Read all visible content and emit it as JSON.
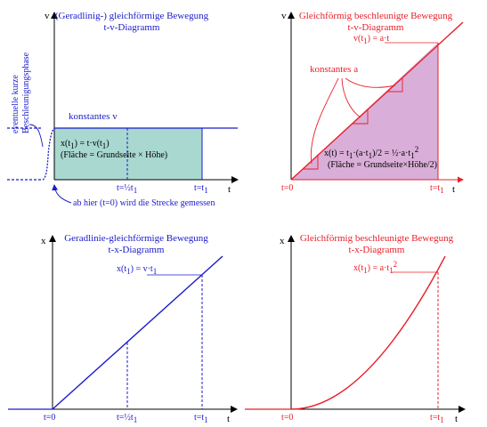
{
  "colors": {
    "blue": "#1a1acc",
    "red": "#e8202a",
    "teal_fill": "#a8d8cf",
    "purple_fill": "#d9aed8",
    "axis": "#000000"
  },
  "p1": {
    "title1": "(Geradlinig-) gleichförmige Bewegung",
    "title2": "t-v-Diagramm",
    "y_axis": "v",
    "x_axis": "t",
    "const_label": "konstantes v",
    "formula1": "x(t",
    "formula1_sub": "1",
    "formula1_rest": ") = t·v(t",
    "formula1_sub2": "1",
    "formula1_end": ")",
    "formula2": "(Fläche = Grundseite × Höhe)",
    "tick_half": "t=½t",
    "tick_half_sub": "1",
    "tick_full": "t=t",
    "tick_full_sub": "1",
    "accel_note1": "eventuelle kurze",
    "accel_note2": "Beschleunigungsphase",
    "start_note": "ab hier (t=0) wird die Strecke gemessen"
  },
  "p2": {
    "title1": "Gleichförmig beschleunigte Bewegung",
    "title2": "t-v-Diagramm",
    "y_axis": "v",
    "x_axis": "t",
    "v_label": "v(t",
    "v_label_sub": "1",
    "v_label_rest": ") = a·t",
    "const_label": "konstantes a",
    "formula1": "x(t) = t",
    "formula1_sub": "1",
    "formula1_rest": "·(a·t",
    "formula1_sub2": "1",
    "formula1_end": ")/2 = ½·a·t",
    "formula1_sub3": "1",
    "formula1_sup": "2",
    "formula2": "(Fläche = Grundseite×Höhe/2)",
    "tick_zero": "t=0",
    "tick_full": "t=t",
    "tick_full_sub": "1"
  },
  "p3": {
    "title1": "Geradlinie-gleichförmige Bewegung",
    "title2": "t-x-Diagramm",
    "y_axis": "x",
    "x_axis": "t",
    "x_label": "x(t",
    "x_label_sub": "1",
    "x_label_rest": ") = v·t",
    "x_label_sub2": "1",
    "tick_zero": "t=0",
    "tick_half": "t=½t",
    "tick_half_sub": "1",
    "tick_full": "t=t",
    "tick_full_sub": "1"
  },
  "p4": {
    "title1": "Gleichförmig beschleunigte Bewegung",
    "title2": "t-x-Diagramm",
    "y_axis": "x",
    "x_axis": "t",
    "x_label": "x(t",
    "x_label_sub": "1",
    "x_label_rest": ") = a·t",
    "x_label_sub2": "1",
    "x_label_sup": "2",
    "tick_zero": "t=0",
    "tick_full": "t=t",
    "tick_full_sub": "1"
  }
}
